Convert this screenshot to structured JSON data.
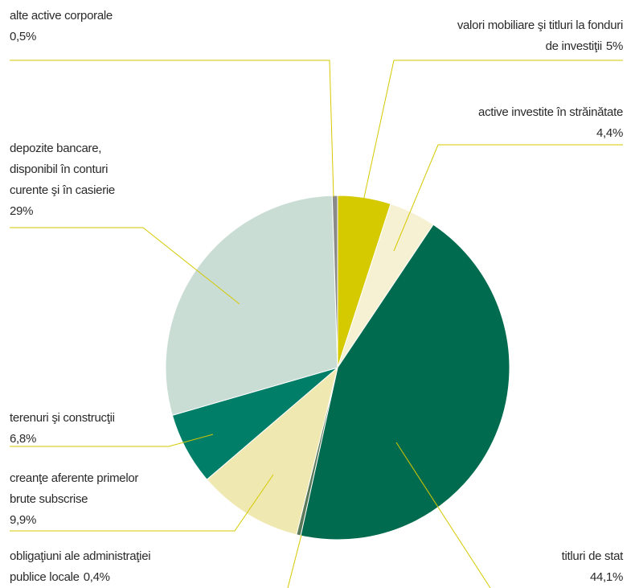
{
  "chart_data": {
    "type": "pie",
    "categories": [
      "valori mobiliare şi titluri la fonduri\nde investiţii",
      "active investite în străinătate",
      "titluri de stat",
      "obligaţiuni ale administraţiei\npublice locale",
      "creanţe aferente primelor\nbrute subscrise",
      "terenuri şi construcţii",
      "depozite bancare,\ndisponibil în conturi\ncurente şi în casierie",
      "alte active corporale"
    ],
    "values": [
      5,
      4.4,
      44.1,
      0.4,
      9.9,
      6.8,
      29,
      0.5
    ],
    "value_labels": [
      "5%",
      "4,4%",
      "44,1%",
      "0,4%",
      "9,9%",
      "6,8%",
      "29%",
      "0,5%"
    ],
    "colors": [
      "#d5c900",
      "#f6f1d2",
      "#006b4f",
      "#5a7a5a",
      "#efe8b0",
      "#007e68",
      "#c9ddd5",
      "#8a8a8a"
    ]
  }
}
